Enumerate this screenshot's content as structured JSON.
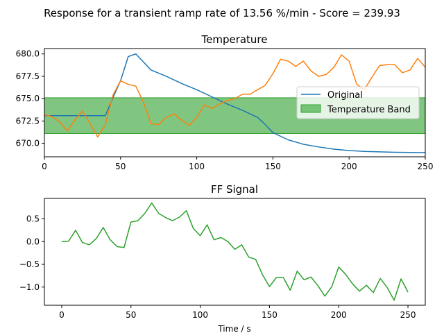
{
  "figure": {
    "suptitle": "Response for a transient ramp rate of 13.56 %/min - Score = 239.93"
  },
  "colors": {
    "original": "#1f77b4",
    "response": "#ff7f0e",
    "band": "#2ca02c",
    "ff_signal": "#2ca02c"
  },
  "chart_data": [
    {
      "type": "line",
      "title": "Temperature",
      "xlabel": "",
      "ylabel": "",
      "xlim": [
        0,
        250
      ],
      "ylim": [
        668.5,
        680.6
      ],
      "xticks": [
        0,
        50,
        100,
        150,
        200,
        250
      ],
      "xtick_labels": [
        "0",
        "50",
        "100",
        "150",
        "200",
        "250"
      ],
      "yticks": [
        670.0,
        672.5,
        675.0,
        677.5,
        680.0
      ],
      "ytick_labels": [
        "670.0",
        "672.5",
        "675.0",
        "677.5",
        "680.0"
      ],
      "grid": false,
      "legend_placement": "center-right",
      "band": {
        "name": "Temperature Band",
        "y0": 671.1,
        "y1": 675.1
      },
      "series": [
        {
          "name": "Original",
          "x": [
            0,
            40,
            45,
            50,
            55,
            60,
            70,
            80,
            90,
            100,
            110,
            120,
            130,
            140,
            145,
            150,
            160,
            170,
            180,
            190,
            200,
            210,
            220,
            230,
            240,
            250
          ],
          "y": [
            673.1,
            673.1,
            675.1,
            677.0,
            679.7,
            680.0,
            678.2,
            677.5,
            676.7,
            676.0,
            675.2,
            674.4,
            673.7,
            672.9,
            672.1,
            671.2,
            670.4,
            669.9,
            669.6,
            669.35,
            669.2,
            669.1,
            669.05,
            669.0,
            668.98,
            668.97
          ]
        },
        {
          "name": "",
          "x": [
            0,
            5,
            10,
            15,
            20,
            25,
            30,
            35,
            40,
            45,
            50,
            55,
            60,
            65,
            70,
            75,
            80,
            85,
            90,
            95,
            100,
            105,
            110,
            115,
            120,
            125,
            130,
            135,
            140,
            145,
            150,
            155,
            160,
            165,
            170,
            175,
            180,
            185,
            190,
            195,
            200,
            205,
            210,
            215,
            220,
            225,
            230,
            235,
            240,
            245,
            250
          ],
          "y": [
            673.2,
            673.0,
            672.4,
            671.4,
            672.6,
            673.6,
            672.2,
            670.7,
            672.1,
            675.4,
            677.0,
            676.6,
            676.4,
            674.6,
            672.2,
            672.1,
            672.9,
            673.3,
            672.6,
            672.0,
            672.9,
            674.3,
            673.9,
            674.4,
            674.8,
            675.0,
            675.5,
            675.5,
            676.0,
            676.5,
            677.8,
            679.4,
            679.2,
            678.6,
            679.2,
            678.1,
            677.5,
            677.7,
            678.5,
            679.9,
            679.2,
            676.6,
            676.0,
            677.4,
            678.7,
            678.8,
            678.8,
            677.9,
            678.2,
            679.5,
            678.5
          ]
        }
      ]
    },
    {
      "type": "line",
      "title": "FF Signal",
      "xlabel": "Time / s",
      "ylabel": "",
      "xlim": [
        -12.5,
        262.5
      ],
      "ylim": [
        -1.4,
        0.95
      ],
      "xticks": [
        0,
        50,
        100,
        150,
        200,
        250
      ],
      "xtick_labels": [
        "0",
        "50",
        "100",
        "150",
        "200",
        "250"
      ],
      "yticks": [
        -1.0,
        -0.5,
        0.0,
        0.5
      ],
      "ytick_labels": [
        "−1.0",
        "−0.5",
        "0.0",
        "0.5"
      ],
      "grid": false,
      "series": [
        {
          "name": "",
          "x": [
            0,
            5,
            10,
            15,
            20,
            25,
            30,
            35,
            40,
            45,
            50,
            55,
            60,
            65,
            70,
            75,
            80,
            85,
            90,
            95,
            100,
            105,
            110,
            115,
            120,
            125,
            130,
            135,
            140,
            145,
            150,
            155,
            160,
            165,
            170,
            175,
            180,
            185,
            190,
            195,
            200,
            205,
            210,
            215,
            220,
            225,
            230,
            235,
            240,
            245,
            250
          ],
          "y": [
            0.0,
            0.01,
            0.25,
            -0.02,
            -0.07,
            0.07,
            0.31,
            0.04,
            -0.11,
            -0.13,
            0.43,
            0.46,
            0.62,
            0.85,
            0.62,
            0.53,
            0.46,
            0.54,
            0.68,
            0.29,
            0.13,
            0.37,
            0.04,
            0.09,
            0.0,
            -0.17,
            -0.07,
            -0.34,
            -0.39,
            -0.73,
            -0.99,
            -0.79,
            -0.79,
            -1.07,
            -0.65,
            -0.84,
            -0.78,
            -0.97,
            -1.2,
            -0.99,
            -0.56,
            -0.72,
            -0.93,
            -1.09,
            -0.96,
            -1.12,
            -0.81,
            -1.01,
            -1.29,
            -0.82,
            -1.11
          ]
        }
      ]
    }
  ]
}
